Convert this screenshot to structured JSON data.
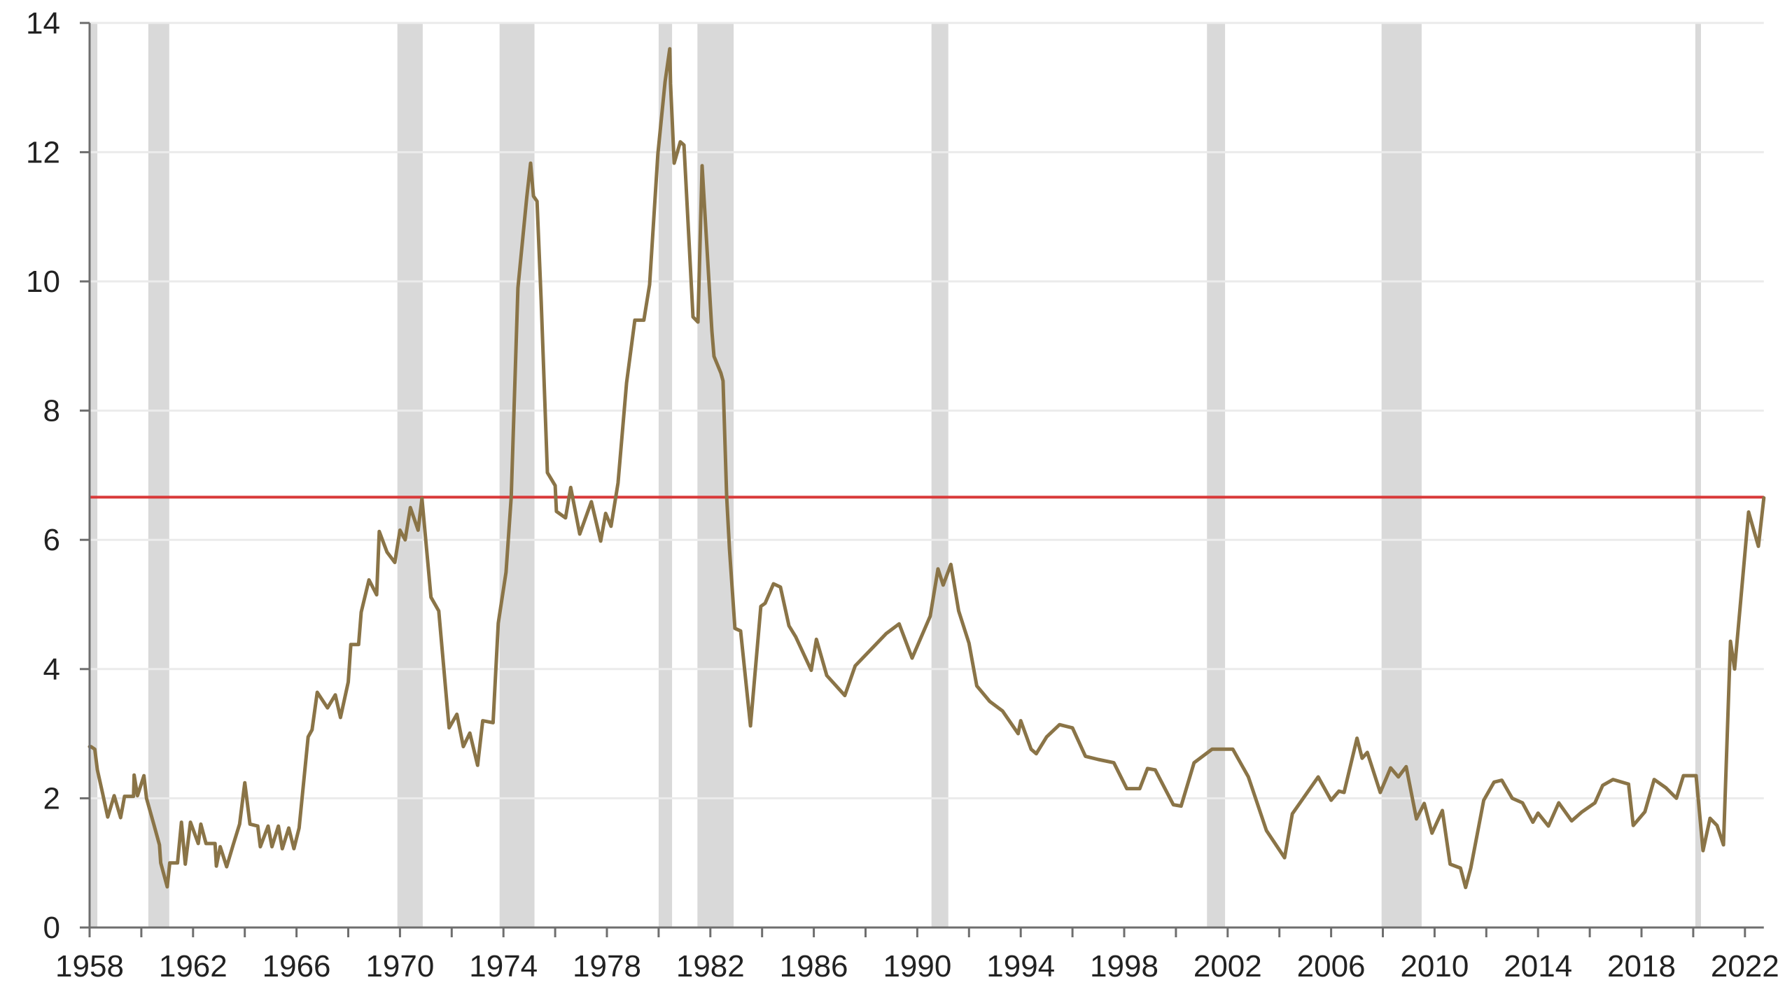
{
  "chart_data": {
    "type": "line",
    "title": "",
    "xlabel": "",
    "ylabel": "",
    "xlim": [
      1958.0,
      2022.73
    ],
    "ylim": [
      0,
      14
    ],
    "grid": {
      "y": true,
      "x": false
    },
    "legend": null,
    "x_ticks": [
      1958,
      1962,
      1966,
      1970,
      1974,
      1978,
      1982,
      1986,
      1990,
      1994,
      1998,
      2002,
      2006,
      2010,
      2014,
      2018,
      2022
    ],
    "x_tick_labels": [
      "1958",
      "1962",
      "1966",
      "1970",
      "1974",
      "1978",
      "1982",
      "1986",
      "1990",
      "1994",
      "1998",
      "2002",
      "2006",
      "2010",
      "2014",
      "2018",
      "2022"
    ],
    "x_minor_ticks_every": 2,
    "y_ticks": [
      0,
      2,
      4,
      6,
      8,
      10,
      12,
      14
    ],
    "y_tick_labels": [
      "0",
      "2",
      "4",
      "6",
      "8",
      "10",
      "12",
      "14"
    ],
    "reference_line": {
      "y": 6.66,
      "color": "#D93A3A",
      "orientation": "horizontal"
    },
    "shaded_regions": [
      {
        "start": 1958.0,
        "end": 1958.3
      },
      {
        "start": 1960.27,
        "end": 1961.08
      },
      {
        "start": 1969.9,
        "end": 1970.88
      },
      {
        "start": 1973.85,
        "end": 1975.2
      },
      {
        "start": 1980.0,
        "end": 1980.52
      },
      {
        "start": 1981.5,
        "end": 1982.9
      },
      {
        "start": 1990.55,
        "end": 1991.2
      },
      {
        "start": 2001.2,
        "end": 2001.9
      },
      {
        "start": 2007.95,
        "end": 2009.5
      },
      {
        "start": 2020.08,
        "end": 2020.3
      }
    ],
    "shade_color": "#D9D9D9",
    "series": [
      {
        "name": "series",
        "color": "#8A7447",
        "points": [
          [
            1958.0,
            2.8
          ],
          [
            1958.05,
            2.8
          ],
          [
            1958.2,
            2.76
          ],
          [
            1958.3,
            2.44
          ],
          [
            1958.5,
            2.08
          ],
          [
            1958.7,
            1.71
          ],
          [
            1958.95,
            2.04
          ],
          [
            1959.2,
            1.7
          ],
          [
            1959.35,
            2.03
          ],
          [
            1959.7,
            2.03
          ],
          [
            1959.72,
            2.36
          ],
          [
            1959.85,
            2.04
          ],
          [
            1960.1,
            2.35
          ],
          [
            1960.2,
            2.0
          ],
          [
            1960.5,
            1.57
          ],
          [
            1960.7,
            1.28
          ],
          [
            1960.75,
            1.0
          ],
          [
            1961.0,
            0.63
          ],
          [
            1961.1,
            1.0
          ],
          [
            1961.4,
            1.0
          ],
          [
            1961.55,
            1.63
          ],
          [
            1961.7,
            0.98
          ],
          [
            1961.9,
            1.63
          ],
          [
            1962.2,
            1.3
          ],
          [
            1962.3,
            1.6
          ],
          [
            1962.5,
            1.3
          ],
          [
            1962.85,
            1.3
          ],
          [
            1962.9,
            0.95
          ],
          [
            1963.05,
            1.25
          ],
          [
            1963.3,
            0.94
          ],
          [
            1963.55,
            1.28
          ],
          [
            1963.8,
            1.6
          ],
          [
            1964.0,
            2.24
          ],
          [
            1964.2,
            1.6
          ],
          [
            1964.5,
            1.57
          ],
          [
            1964.6,
            1.25
          ],
          [
            1964.9,
            1.57
          ],
          [
            1965.05,
            1.25
          ],
          [
            1965.3,
            1.57
          ],
          [
            1965.45,
            1.22
          ],
          [
            1965.7,
            1.54
          ],
          [
            1965.9,
            1.22
          ],
          [
            1966.1,
            1.54
          ],
          [
            1966.45,
            2.95
          ],
          [
            1966.6,
            3.06
          ],
          [
            1966.8,
            3.64
          ],
          [
            1967.2,
            3.4
          ],
          [
            1967.5,
            3.6
          ],
          [
            1967.7,
            3.25
          ],
          [
            1968.0,
            3.8
          ],
          [
            1968.1,
            4.38
          ],
          [
            1968.4,
            4.38
          ],
          [
            1968.5,
            4.88
          ],
          [
            1968.8,
            5.38
          ],
          [
            1969.1,
            5.15
          ],
          [
            1969.2,
            6.13
          ],
          [
            1969.5,
            5.81
          ],
          [
            1969.8,
            5.65
          ],
          [
            1970.0,
            6.15
          ],
          [
            1970.2,
            6.0
          ],
          [
            1970.4,
            6.5
          ],
          [
            1970.7,
            6.15
          ],
          [
            1970.85,
            6.64
          ],
          [
            1971.2,
            5.11
          ],
          [
            1971.5,
            4.9
          ],
          [
            1971.85,
            3.3
          ],
          [
            1971.9,
            3.09
          ],
          [
            1972.2,
            3.3
          ],
          [
            1972.45,
            2.8
          ],
          [
            1972.7,
            3.01
          ],
          [
            1973.0,
            2.51
          ],
          [
            1973.2,
            3.2
          ],
          [
            1973.6,
            3.17
          ],
          [
            1973.8,
            4.71
          ],
          [
            1974.1,
            5.5
          ],
          [
            1974.3,
            6.66
          ],
          [
            1974.56,
            9.9
          ],
          [
            1974.9,
            11.3
          ],
          [
            1975.05,
            11.83
          ],
          [
            1975.16,
            11.32
          ],
          [
            1975.3,
            11.24
          ],
          [
            1975.46,
            9.7
          ],
          [
            1975.7,
            7.04
          ],
          [
            1976.0,
            6.84
          ],
          [
            1976.05,
            6.44
          ],
          [
            1976.4,
            6.34
          ],
          [
            1976.6,
            6.81
          ],
          [
            1976.95,
            6.09
          ],
          [
            1977.4,
            6.59
          ],
          [
            1977.76,
            5.98
          ],
          [
            1977.95,
            6.41
          ],
          [
            1978.16,
            6.21
          ],
          [
            1978.43,
            6.88
          ],
          [
            1978.76,
            8.43
          ],
          [
            1979.08,
            9.4
          ],
          [
            1979.43,
            9.4
          ],
          [
            1979.65,
            9.95
          ],
          [
            1979.97,
            11.97
          ],
          [
            1980.25,
            13.09
          ],
          [
            1980.43,
            13.6
          ],
          [
            1980.46,
            13.06
          ],
          [
            1980.6,
            11.83
          ],
          [
            1980.84,
            12.16
          ],
          [
            1980.98,
            12.11
          ],
          [
            1981.33,
            9.45
          ],
          [
            1981.52,
            9.37
          ],
          [
            1981.68,
            11.79
          ],
          [
            1982.06,
            9.23
          ],
          [
            1982.14,
            8.84
          ],
          [
            1982.41,
            8.58
          ],
          [
            1982.49,
            8.46
          ],
          [
            1982.63,
            6.67
          ],
          [
            1982.74,
            5.86
          ],
          [
            1982.95,
            4.63
          ],
          [
            1983.17,
            4.59
          ],
          [
            1983.55,
            3.12
          ],
          [
            1983.95,
            4.97
          ],
          [
            1984.12,
            5.02
          ],
          [
            1984.44,
            5.32
          ],
          [
            1984.71,
            5.27
          ],
          [
            1985.04,
            4.67
          ],
          [
            1985.3,
            4.5
          ],
          [
            1985.9,
            3.98
          ],
          [
            1986.1,
            4.46
          ],
          [
            1986.5,
            3.9
          ],
          [
            1987.2,
            3.59
          ],
          [
            1987.6,
            4.05
          ],
          [
            1988.2,
            4.3
          ],
          [
            1988.8,
            4.55
          ],
          [
            1989.3,
            4.7
          ],
          [
            1989.8,
            4.17
          ],
          [
            1990.5,
            4.82
          ],
          [
            1990.8,
            5.55
          ],
          [
            1991.0,
            5.3
          ],
          [
            1991.3,
            5.62
          ],
          [
            1991.6,
            4.9
          ],
          [
            1992.0,
            4.4
          ],
          [
            1992.3,
            3.74
          ],
          [
            1992.8,
            3.5
          ],
          [
            1993.3,
            3.35
          ],
          [
            1993.9,
            3.0
          ],
          [
            1994.0,
            3.2
          ],
          [
            1994.4,
            2.76
          ],
          [
            1994.6,
            2.69
          ],
          [
            1995.0,
            2.95
          ],
          [
            1995.5,
            3.14
          ],
          [
            1996.0,
            3.09
          ],
          [
            1996.5,
            2.65
          ],
          [
            1997.0,
            2.6
          ],
          [
            1997.6,
            2.55
          ],
          [
            1998.1,
            2.15
          ],
          [
            1998.6,
            2.15
          ],
          [
            1998.9,
            2.46
          ],
          [
            1999.2,
            2.44
          ],
          [
            1999.9,
            1.9
          ],
          [
            2000.2,
            1.88
          ],
          [
            2000.7,
            2.55
          ],
          [
            2001.4,
            2.76
          ],
          [
            2002.2,
            2.76
          ],
          [
            2002.8,
            2.33
          ],
          [
            2003.5,
            1.5
          ],
          [
            2004.2,
            1.08
          ],
          [
            2004.5,
            1.76
          ],
          [
            2005.5,
            2.33
          ],
          [
            2006.0,
            1.97
          ],
          [
            2006.3,
            2.11
          ],
          [
            2006.5,
            2.09
          ],
          [
            2007.0,
            2.93
          ],
          [
            2007.2,
            2.62
          ],
          [
            2007.4,
            2.71
          ],
          [
            2007.9,
            2.09
          ],
          [
            2008.3,
            2.47
          ],
          [
            2008.6,
            2.33
          ],
          [
            2008.9,
            2.49
          ],
          [
            2009.3,
            1.68
          ],
          [
            2009.6,
            1.92
          ],
          [
            2009.9,
            1.46
          ],
          [
            2010.3,
            1.81
          ],
          [
            2010.6,
            0.98
          ],
          [
            2011.0,
            0.92
          ],
          [
            2011.2,
            0.62
          ],
          [
            2011.4,
            0.92
          ],
          [
            2011.9,
            1.97
          ],
          [
            2012.3,
            2.25
          ],
          [
            2012.6,
            2.28
          ],
          [
            2013.0,
            2.0
          ],
          [
            2013.4,
            1.93
          ],
          [
            2013.8,
            1.63
          ],
          [
            2014.0,
            1.77
          ],
          [
            2014.4,
            1.57
          ],
          [
            2014.8,
            1.93
          ],
          [
            2015.3,
            1.65
          ],
          [
            2015.7,
            1.79
          ],
          [
            2016.2,
            1.93
          ],
          [
            2016.5,
            2.2
          ],
          [
            2016.9,
            2.29
          ],
          [
            2017.5,
            2.22
          ],
          [
            2017.68,
            1.58
          ],
          [
            2018.13,
            1.79
          ],
          [
            2018.49,
            2.29
          ],
          [
            2018.95,
            2.16
          ],
          [
            2019.35,
            2.0
          ],
          [
            2019.62,
            2.35
          ],
          [
            2020.11,
            2.35
          ],
          [
            2020.38,
            1.19
          ],
          [
            2020.65,
            1.69
          ],
          [
            2020.92,
            1.58
          ],
          [
            2021.17,
            1.28
          ],
          [
            2021.44,
            4.43
          ],
          [
            2021.6,
            4.0
          ],
          [
            2022.14,
            6.43
          ],
          [
            2022.52,
            5.9
          ],
          [
            2022.73,
            6.65
          ]
        ]
      }
    ]
  },
  "colors": {
    "line": "#8A7447",
    "reference_line": "#D93A3A",
    "shade": "#D9D9D9",
    "grid": "#EBEBEB",
    "axis": "#6E6E6E",
    "text": "#222222"
  }
}
